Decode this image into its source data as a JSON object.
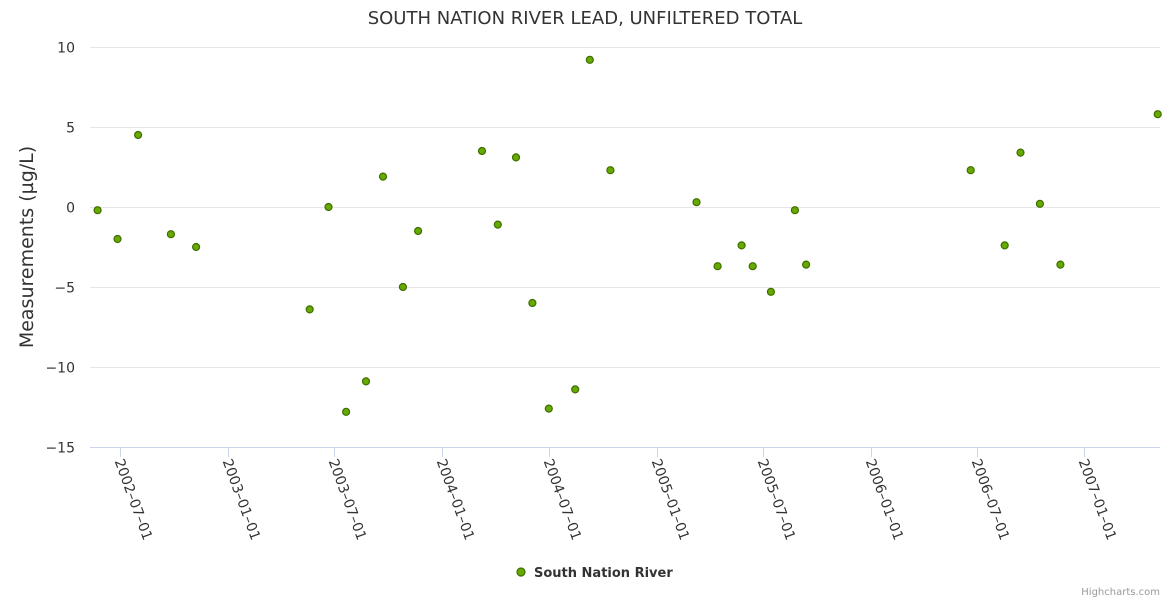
{
  "chart_data": {
    "type": "scatter",
    "title": "SOUTH NATION RIVER LEAD, UNFILTERED TOTAL",
    "ylabel": "Measurements (µg/L)",
    "xlabel": "",
    "ylim": [
      -15,
      10
    ],
    "yticks": [
      -15,
      -10,
      -5,
      0,
      5,
      10
    ],
    "xlim": [
      "2002-05-10",
      "2007-05-10"
    ],
    "xticks": [
      "2002-07-01",
      "2003-01-01",
      "2003-07-01",
      "2004-01-01",
      "2004-07-01",
      "2005-01-01",
      "2005-07-01",
      "2006-01-01",
      "2006-07-01",
      "2007-01-01"
    ],
    "grid": true,
    "legend_position": "bottom-center",
    "series": [
      {
        "name": "South Nation River",
        "color": "#66aa00",
        "border_color": "#3f6e00",
        "points": [
          {
            "x": "2002-05-23",
            "y": -0.2
          },
          {
            "x": "2002-06-26",
            "y": -2.0
          },
          {
            "x": "2002-07-31",
            "y": 4.5
          },
          {
            "x": "2002-09-25",
            "y": -1.7
          },
          {
            "x": "2002-11-07",
            "y": -2.5
          },
          {
            "x": "2003-05-20",
            "y": -6.4
          },
          {
            "x": "2003-06-21",
            "y": 0.0
          },
          {
            "x": "2003-07-21",
            "y": -12.8
          },
          {
            "x": "2003-08-24",
            "y": -10.9
          },
          {
            "x": "2003-09-22",
            "y": 1.9
          },
          {
            "x": "2003-10-26",
            "y": -5.0
          },
          {
            "x": "2003-11-21",
            "y": -1.5
          },
          {
            "x": "2004-03-09",
            "y": 3.5
          },
          {
            "x": "2004-04-05",
            "y": -1.1
          },
          {
            "x": "2004-05-06",
            "y": 3.1
          },
          {
            "x": "2004-06-03",
            "y": -6.0
          },
          {
            "x": "2004-07-01",
            "y": -12.6
          },
          {
            "x": "2004-08-15",
            "y": -11.4
          },
          {
            "x": "2004-09-09",
            "y": 9.2
          },
          {
            "x": "2004-10-14",
            "y": 2.3
          },
          {
            "x": "2005-03-10",
            "y": 0.3
          },
          {
            "x": "2005-04-15",
            "y": -3.7
          },
          {
            "x": "2005-05-26",
            "y": -2.4
          },
          {
            "x": "2005-06-14",
            "y": -3.7
          },
          {
            "x": "2005-07-15",
            "y": -5.3
          },
          {
            "x": "2005-08-25",
            "y": -0.2
          },
          {
            "x": "2005-09-13",
            "y": -3.6
          },
          {
            "x": "2006-06-21",
            "y": 2.3
          },
          {
            "x": "2006-08-18",
            "y": -2.4
          },
          {
            "x": "2006-09-14",
            "y": 3.4
          },
          {
            "x": "2006-10-17",
            "y": 0.2
          },
          {
            "x": "2006-11-21",
            "y": -3.6
          },
          {
            "x": "2007-05-06",
            "y": 5.8
          }
        ]
      }
    ]
  },
  "credits": "Highcharts.com"
}
